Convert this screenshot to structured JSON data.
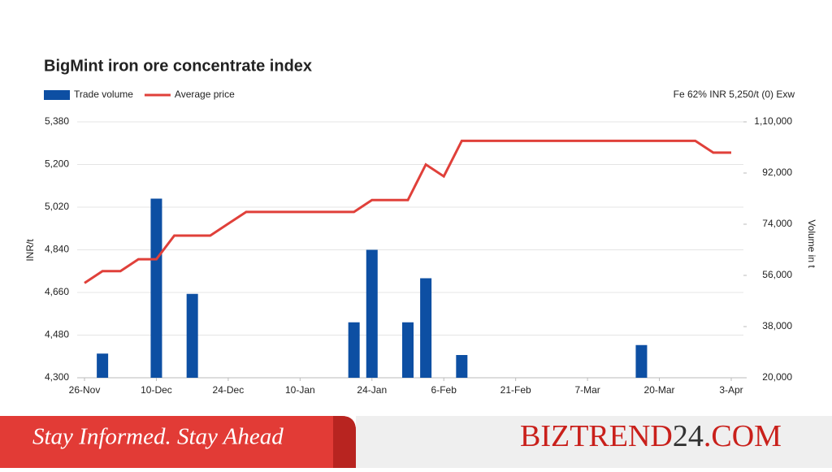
{
  "chart_data": {
    "type": "combo",
    "title": "BigMint iron ore concentrate index",
    "note": "Fe 62%  INR 5,250/t (0) Exw",
    "ylabel": "INR/t",
    "y2label": "Volume in t",
    "categories": [
      "26-Nov",
      null,
      null,
      null,
      "10-Dec",
      null,
      null,
      null,
      "24-Dec",
      null,
      null,
      null,
      "10-Jan",
      null,
      null,
      null,
      "24-Jan",
      null,
      null,
      null,
      "6-Feb",
      null,
      null,
      null,
      "21-Feb",
      null,
      null,
      null,
      "7-Mar",
      null,
      null,
      null,
      "20-Mar",
      null,
      null,
      null,
      "3-Apr"
    ],
    "series": [
      {
        "name": "Trade volume",
        "type": "bar",
        "axis": "y2",
        "color": "#0d4fa3",
        "values": [
          null,
          28500,
          null,
          null,
          83000,
          null,
          49500,
          null,
          null,
          null,
          null,
          null,
          null,
          null,
          null,
          39500,
          65000,
          null,
          39500,
          55000,
          null,
          28000,
          null,
          null,
          null,
          null,
          null,
          null,
          null,
          null,
          null,
          31500,
          null,
          null,
          null,
          null,
          null
        ]
      },
      {
        "name": "Average price",
        "type": "line",
        "color": "#e0403a",
        "values": [
          4700,
          4750,
          4750,
          4800,
          4800,
          4900,
          4900,
          4900,
          4950,
          5000,
          5000,
          5000,
          5000,
          5000,
          5000,
          5000,
          5050,
          5050,
          5050,
          5200,
          5150,
          5300,
          5300,
          5300,
          5300,
          5300,
          5300,
          5300,
          5300,
          5300,
          5300,
          5300,
          5300,
          5300,
          5300,
          5250,
          5250
        ]
      }
    ],
    "ylim": [
      4300,
      5380
    ],
    "yticks": [
      {
        "value": 4300,
        "label": "4,300"
      },
      {
        "value": 4480,
        "label": "4,480"
      },
      {
        "value": 4660,
        "label": "4,660"
      },
      {
        "value": 4840,
        "label": "4,840"
      },
      {
        "value": 5020,
        "label": "5,020"
      },
      {
        "value": 5200,
        "label": "5,200"
      },
      {
        "value": 5380,
        "label": "5,380"
      }
    ],
    "y2lim": [
      20000,
      110000
    ],
    "y2ticks": [
      {
        "value": 20000,
        "label": "20,000"
      },
      {
        "value": 38000,
        "label": "38,000"
      },
      {
        "value": 56000,
        "label": "56,000"
      },
      {
        "value": 74000,
        "label": "74,000"
      },
      {
        "value": 92000,
        "label": "92,000"
      },
      {
        "value": 110000,
        "label": "1,10,000"
      }
    ],
    "grid": true
  },
  "banner": {
    "tagline": "Stay Informed. Stay Ahead",
    "brand": [
      "BIZTREND",
      "24",
      ".COM"
    ]
  }
}
